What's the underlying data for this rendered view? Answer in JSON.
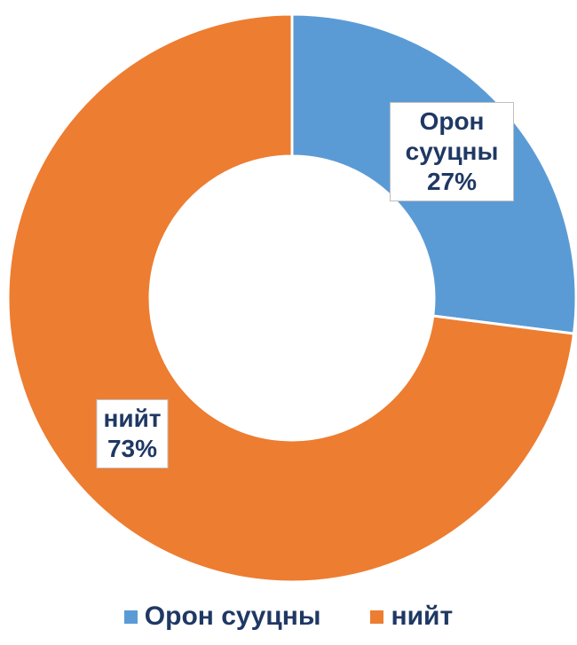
{
  "chart_data": {
    "type": "donut",
    "categories": [
      "Орон сууцны",
      "нийт"
    ],
    "values": [
      27,
      73
    ],
    "value_labels": [
      "27%",
      "73%"
    ],
    "colors": [
      "#5b9bd5",
      "#ed7d31"
    ],
    "legend": "bottom"
  }
}
